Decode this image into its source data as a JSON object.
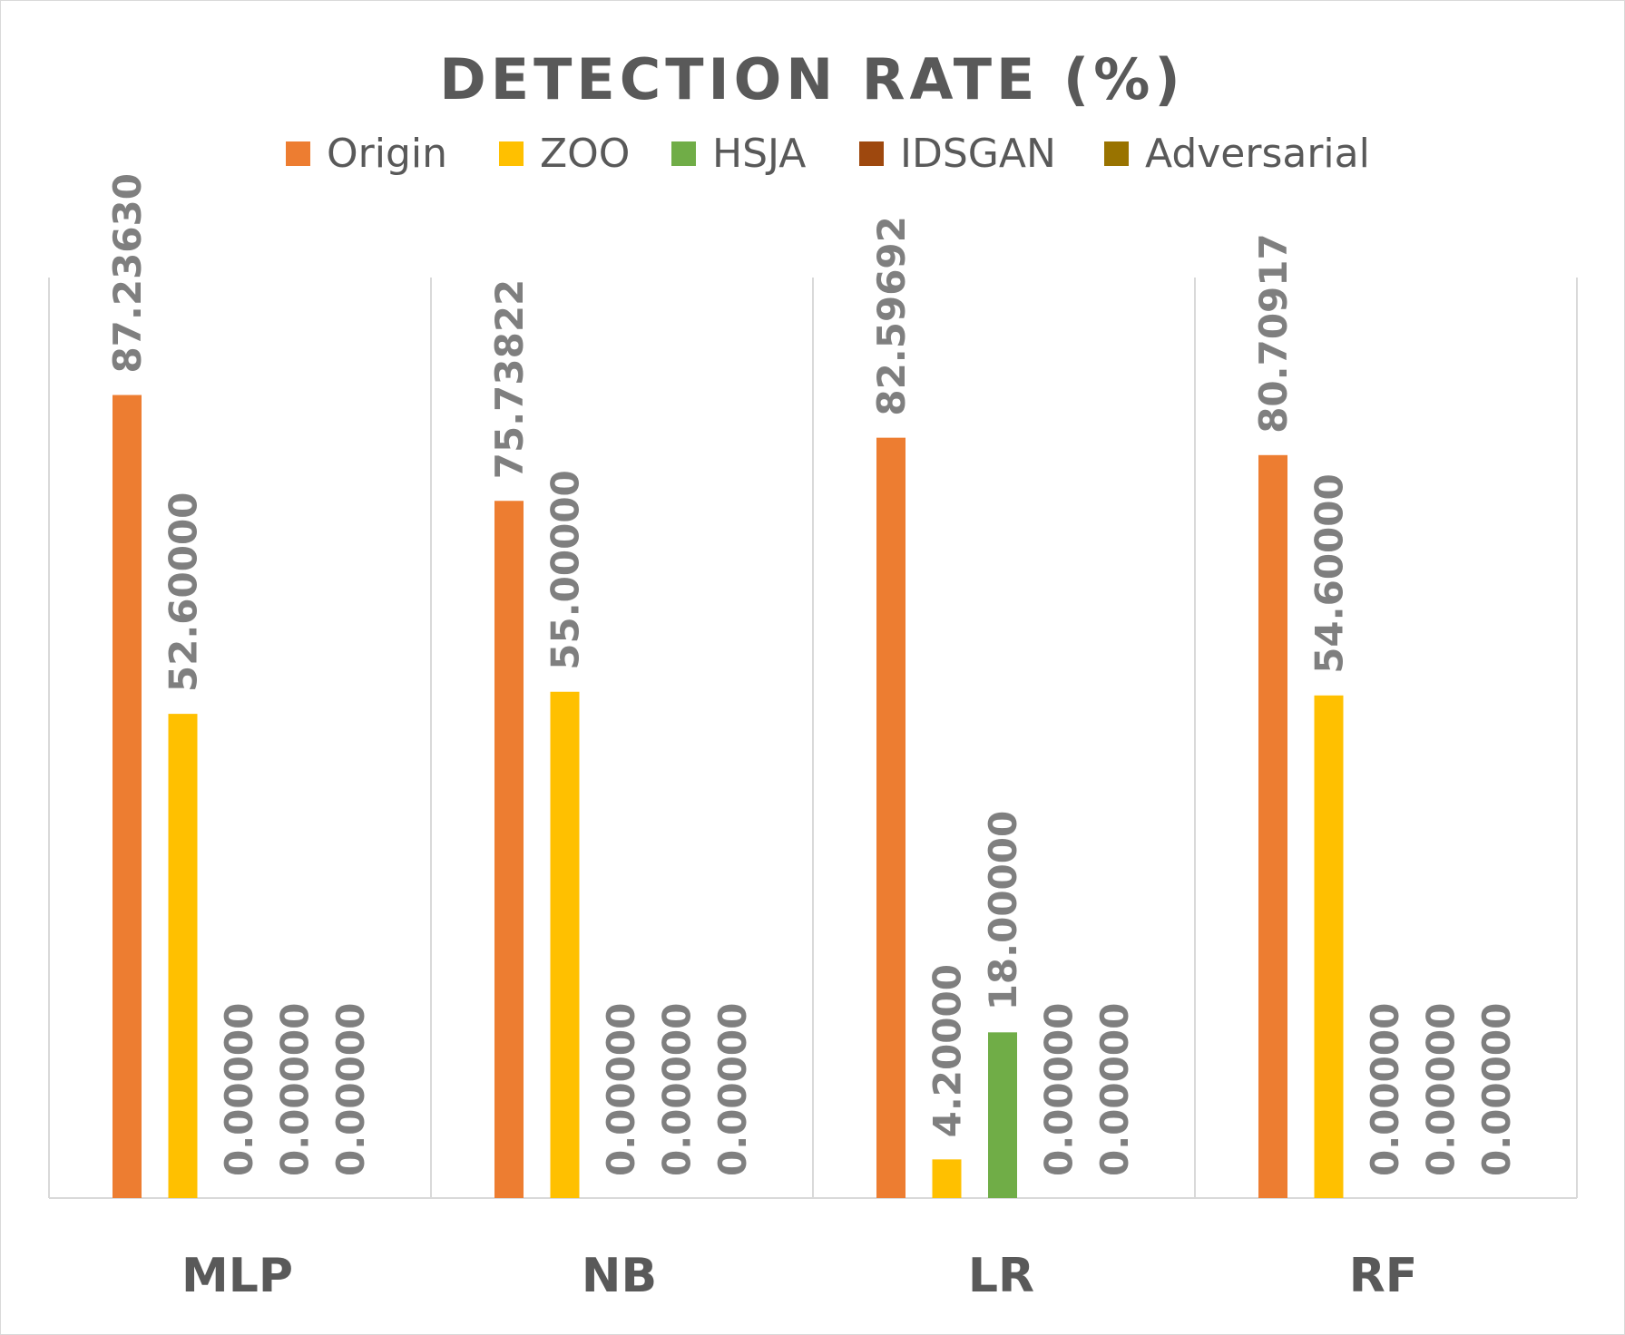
{
  "chart_data": {
    "type": "bar",
    "title": "DETECTION RATE (%)",
    "xlabel": "",
    "ylabel": "",
    "ylim": [
      0,
      100
    ],
    "grid": "vertical category separators",
    "legend_position": "top",
    "categories": [
      "MLP",
      "NB",
      "LR",
      "RF"
    ],
    "series": [
      {
        "name": "Origin",
        "color": "#ED7D31",
        "values": [
          87.2363,
          75.73822,
          82.59692,
          80.70917
        ],
        "labels": [
          "87.23630",
          "75.73822",
          "82.59692",
          "80.70917"
        ]
      },
      {
        "name": "ZOO",
        "color": "#FFC000",
        "values": [
          52.6,
          55.0,
          4.2,
          54.6
        ],
        "labels": [
          "52.60000",
          "55.00000",
          "4.20000",
          "54.60000"
        ]
      },
      {
        "name": "HSJA",
        "color": "#70AD47",
        "values": [
          0,
          0,
          18.0,
          0
        ],
        "labels": [
          "0.00000",
          "0.00000",
          "18.00000",
          "0.00000"
        ]
      },
      {
        "name": "IDSGAN",
        "color": "#9E480E",
        "values": [
          0,
          0,
          0,
          0
        ],
        "labels": [
          "0.00000",
          "0.00000",
          "0.00000",
          "0.00000"
        ]
      },
      {
        "name": "Adversarial",
        "color": "#997300",
        "values": [
          0,
          0,
          0,
          0
        ],
        "labels": [
          "0.00000",
          "0.00000",
          "0.00000",
          "0.00000"
        ]
      }
    ]
  }
}
